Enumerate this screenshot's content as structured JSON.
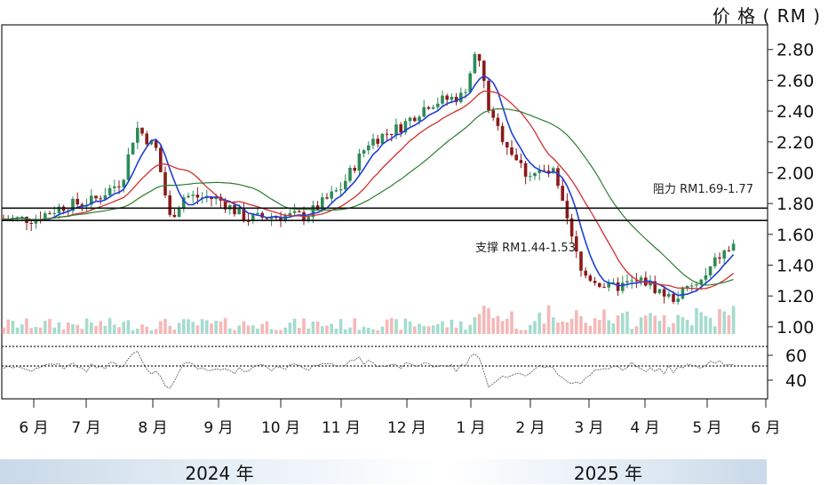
{
  "unit_label": "价 格 ( RM )",
  "years": [
    "2024 年",
    "2025 年"
  ],
  "chart_data": {
    "type": "candlestick",
    "price_axis": {
      "ticks": [
        "2.80",
        "2.60",
        "2.40",
        "2.20",
        "2.00",
        "1.80",
        "1.60",
        "1.40",
        "1.20",
        "1.00"
      ],
      "ylim": [
        0.93,
        2.96
      ]
    },
    "rsi_axis": {
      "ticks": [
        "60",
        "40"
      ]
    },
    "months": [
      "6 月",
      "7 月",
      "8 月",
      "9 月",
      "10 月",
      "11 月",
      "12 月",
      "1 月",
      "2 月",
      "3 月",
      "4 月",
      "5 月",
      "6 月"
    ],
    "resistance": {
      "label": "阻力",
      "range": "RM1.69-1.77",
      "levels": [
        1.69,
        1.77
      ]
    },
    "support": {
      "label": "支撑",
      "range": "RM1.44-1.53",
      "levels": [
        1.44,
        1.53
      ]
    },
    "close_series": [
      [
        "2024-06-01",
        1.7
      ],
      [
        "2024-06-15",
        1.78
      ],
      [
        "2024-07-01",
        1.82
      ],
      [
        "2024-07-15",
        1.95
      ],
      [
        "2024-07-22",
        2.3
      ],
      [
        "2024-08-01",
        2.15
      ],
      [
        "2024-08-08",
        1.7
      ],
      [
        "2024-08-15",
        1.85
      ],
      [
        "2024-09-01",
        1.83
      ],
      [
        "2024-09-15",
        1.7
      ],
      [
        "2024-10-01",
        1.72
      ],
      [
        "2024-10-15",
        1.72
      ],
      [
        "2024-11-01",
        1.9
      ],
      [
        "2024-11-15",
        2.2
      ],
      [
        "2024-12-01",
        2.3
      ],
      [
        "2024-12-15",
        2.45
      ],
      [
        "2025-01-01",
        2.5
      ],
      [
        "2025-01-08",
        2.8
      ],
      [
        "2025-01-15",
        2.35
      ],
      [
        "2025-02-01",
        2.0
      ],
      [
        "2025-02-15",
        2.0
      ],
      [
        "2025-03-01",
        1.35
      ],
      [
        "2025-03-15",
        1.25
      ],
      [
        "2025-04-01",
        1.3
      ],
      [
        "2025-04-15",
        1.18
      ],
      [
        "2025-05-01",
        1.3
      ],
      [
        "2025-05-08",
        1.45
      ],
      [
        "2025-05-22",
        1.58
      ]
    ]
  }
}
